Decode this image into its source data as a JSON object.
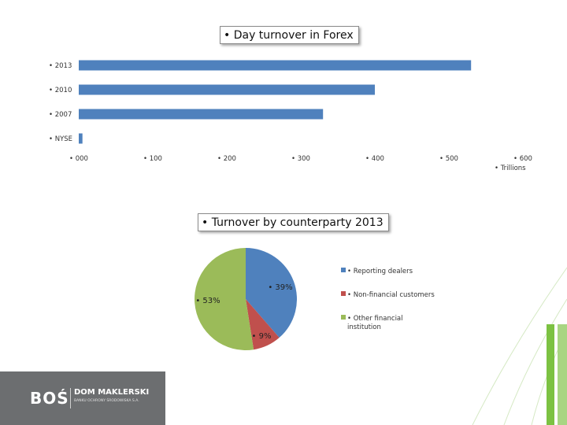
{
  "chart_data": [
    {
      "type": "bar",
      "orientation": "horizontal",
      "title": "• Day turnover in Forex",
      "categories": [
        "• 2013",
        "• 2010",
        "• 2007",
        "• NYSE"
      ],
      "values": [
        530,
        400,
        330,
        5
      ],
      "xlim": [
        0,
        600
      ],
      "xticks": [
        "• 000",
        "• 100",
        "• 200",
        "• 300",
        "• 400",
        "• 500",
        "• 600"
      ],
      "xticks_values": [
        0,
        100,
        200,
        300,
        400,
        500,
        600
      ],
      "unit_label": "• Trillions",
      "grid": false,
      "legend": "none",
      "color": "#4f81bd"
    },
    {
      "type": "pie",
      "title": "• Turnover by counterparty 2013",
      "categories": [
        "• Reporting dealers",
        "• Non-financial customers",
        "• Other financial institution"
      ],
      "values": [
        39,
        9,
        53
      ],
      "data_labels": [
        "• 39%",
        "• 9%",
        "• 53%"
      ],
      "colors": [
        "#4f81bd",
        "#c0504d",
        "#9bbb59"
      ],
      "legend": "right"
    }
  ],
  "logo": {
    "brand": "BOŚ",
    "name": "DOM MAKLERSKI",
    "subtitle": "BANKU OCHRONY ŚRODOWISKA S.A."
  },
  "colors": {
    "background": "#ffffff",
    "decor_green": "#7cc242",
    "logo_bg": "#6c6e70"
  }
}
